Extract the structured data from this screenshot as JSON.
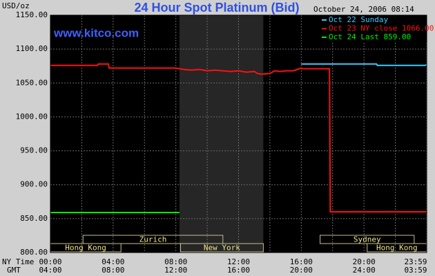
{
  "chart_data": {
    "type": "line",
    "title": "24 Hour Spot Platinum (Bid)",
    "timestamp": "October 24, 2006 08:14",
    "y_label": "USD/oz",
    "annotation": "www.kitco.com",
    "xlim": [
      0,
      24
    ],
    "ylim": [
      800,
      1150
    ],
    "yticks": [
      {
        "value": 800,
        "label": "800.00"
      },
      {
        "value": 850,
        "label": "850.00"
      },
      {
        "value": 900,
        "label": "900.00"
      },
      {
        "value": 950,
        "label": "950.00"
      },
      {
        "value": 1000,
        "label": "1000.00"
      },
      {
        "value": 1050,
        "label": "1050.00"
      },
      {
        "value": 1100,
        "label": "1100.00"
      },
      {
        "value": 1150,
        "label": "1150.00"
      }
    ],
    "xticks": [
      {
        "value": 0,
        "label": "00:00"
      },
      {
        "value": 4,
        "label": "04:00"
      },
      {
        "value": 8,
        "label": "08:00"
      },
      {
        "value": 12,
        "label": "12:00"
      },
      {
        "value": 16,
        "label": "16:00"
      },
      {
        "value": 20,
        "label": "20:00"
      },
      {
        "value": 23.983,
        "label": "23:59"
      }
    ],
    "x_minor_grid": [
      2,
      6,
      10,
      14,
      18,
      22
    ],
    "x_row_labels": [
      "NY Time",
      "GMT"
    ],
    "gmt_tick_labels": [
      "04:00",
      "08:00",
      "12:00",
      "16:00",
      "20:00",
      "24:00",
      "03:59"
    ],
    "shaded_region": [
      8.23,
      13.58
    ],
    "markets": [
      {
        "name": "Hong Kong",
        "start": 0,
        "end": 4.5,
        "row": 0
      },
      {
        "name": "Zurich",
        "start": 2.08,
        "end": 11,
        "row": 1
      },
      {
        "name": "New York",
        "start": 8.3,
        "end": 13.58,
        "row": 0
      },
      {
        "name": "Sydney",
        "start": 17.2,
        "end": 23.2,
        "row": 1
      },
      {
        "name": "Hong Kong",
        "start": 20.2,
        "end": 24,
        "row": 0
      }
    ],
    "grid": true,
    "legend": "top-right",
    "series": [
      {
        "name": "Oct 22 Sunday",
        "color": "#40c8ff",
        "x": [
          16,
          20.8,
          20.85,
          23.9,
          24
        ],
        "values": [
          1078,
          1078,
          1076,
          1076,
          1077
        ]
      },
      {
        "name": "Oct 23 NY close 1066.00",
        "color": "#ff1010",
        "x": [
          0,
          3,
          3.05,
          3.7,
          3.75,
          8,
          8.5,
          9,
          9.5,
          10,
          10.5,
          11,
          11.5,
          12,
          12.5,
          13,
          13.2,
          13.5,
          14,
          14.3,
          14.7,
          15,
          15.5,
          16,
          16.05,
          17.8,
          17.85,
          24
        ],
        "values": [
          1076,
          1076,
          1078,
          1078,
          1072,
          1072,
          1070,
          1069,
          1070,
          1068,
          1069,
          1068,
          1067,
          1068,
          1066,
          1067,
          1064,
          1063,
          1064,
          1068,
          1067,
          1068,
          1068,
          1072,
          1071,
          1071,
          860,
          860
        ]
      },
      {
        "name": "Oct 24 Last 859.00",
        "color": "#00f000",
        "x": [
          0,
          8.23
        ],
        "values": [
          859,
          859
        ]
      }
    ]
  }
}
